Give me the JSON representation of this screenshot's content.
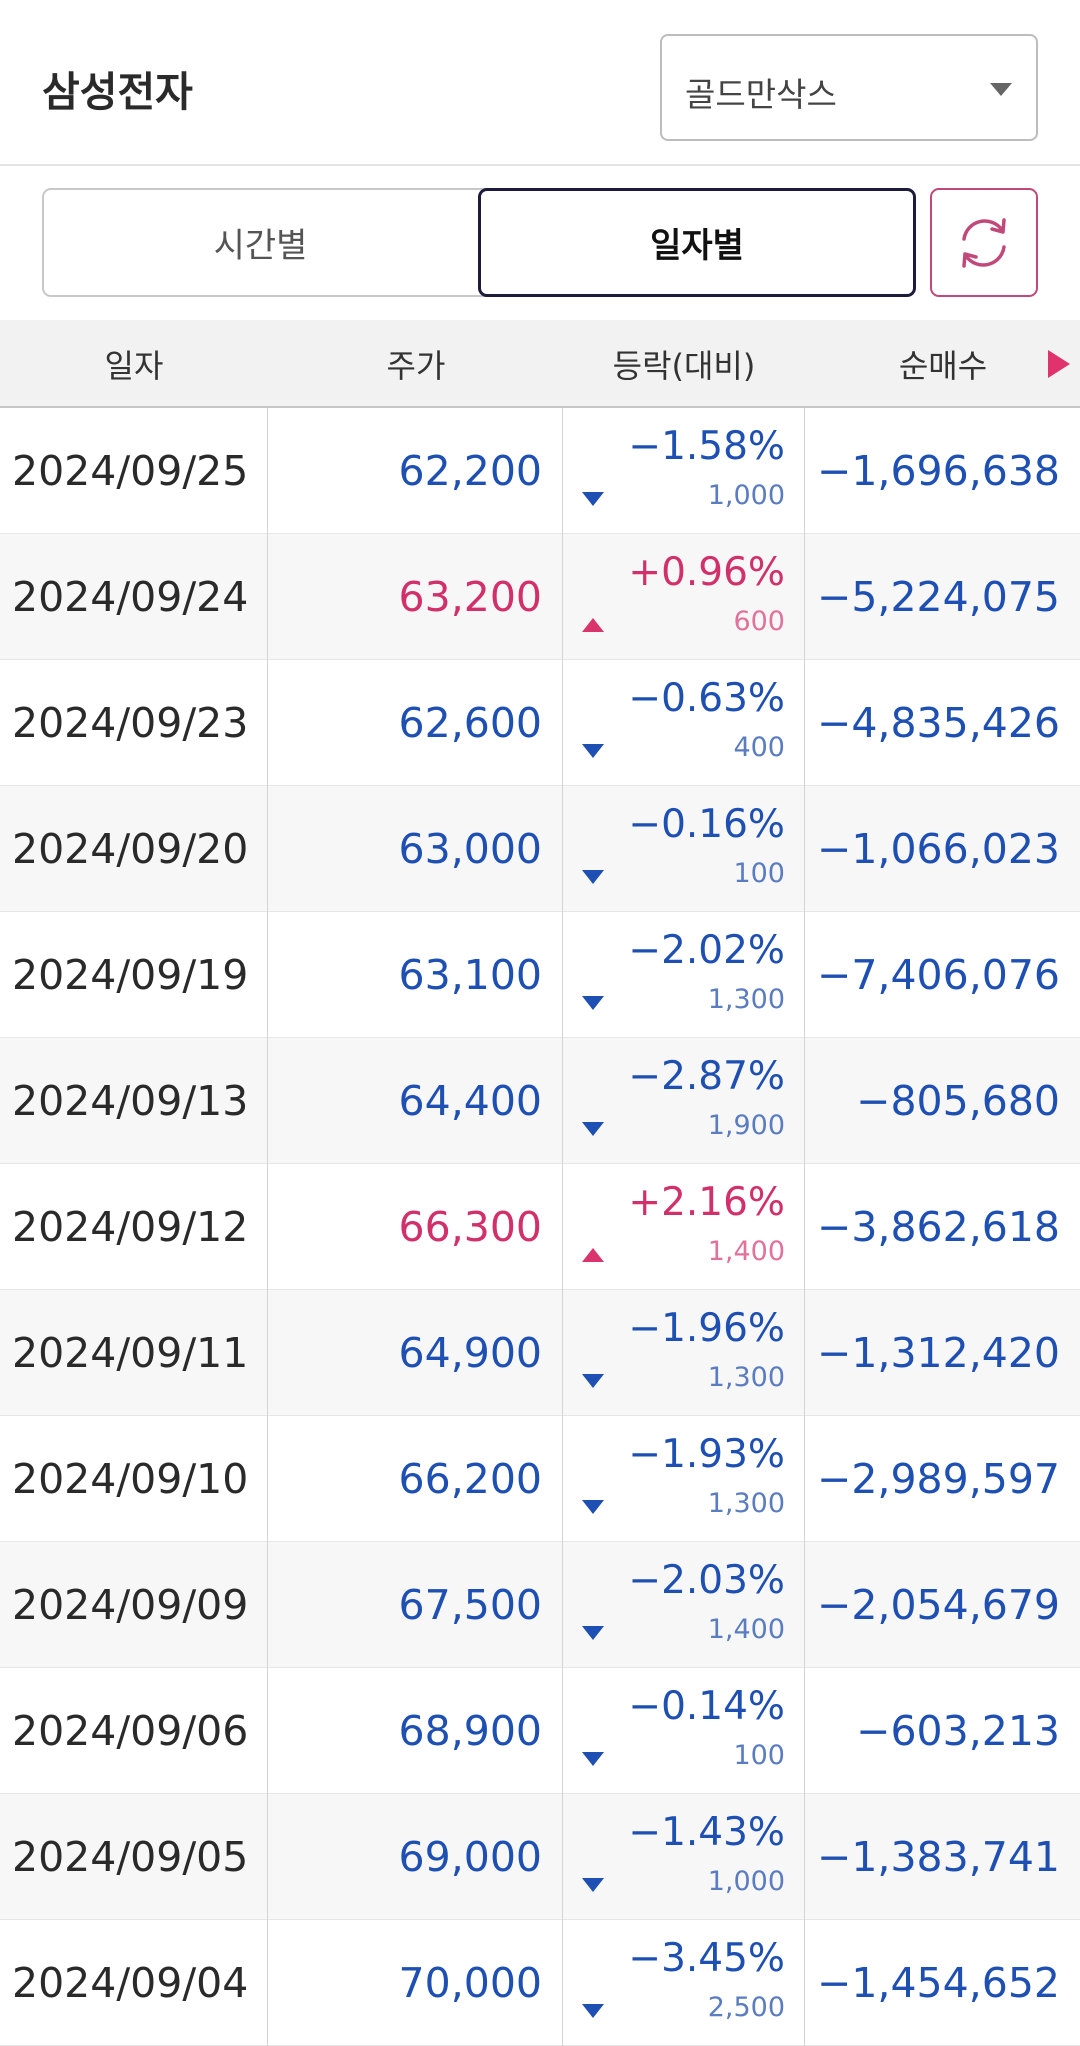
{
  "header": {
    "stock_name": "삼성전자",
    "broker": {
      "selected": "골드만삭스"
    }
  },
  "toggle": {
    "time_label": "시간별",
    "date_label": "일자별",
    "active": "date"
  },
  "table": {
    "headers": {
      "date": "일자",
      "price": "주가",
      "change": "등락(대비)",
      "net": "순매수"
    },
    "rows": [
      {
        "date": "2024/09/25",
        "price": "62,200",
        "pct": "−1.58%",
        "diff": "1,000",
        "dir": "down",
        "net": "−1,696,638"
      },
      {
        "date": "2024/09/24",
        "price": "63,200",
        "pct": "+0.96%",
        "diff": "600",
        "dir": "up",
        "net": "−5,224,075"
      },
      {
        "date": "2024/09/23",
        "price": "62,600",
        "pct": "−0.63%",
        "diff": "400",
        "dir": "down",
        "net": "−4,835,426"
      },
      {
        "date": "2024/09/20",
        "price": "63,000",
        "pct": "−0.16%",
        "diff": "100",
        "dir": "down",
        "net": "−1,066,023"
      },
      {
        "date": "2024/09/19",
        "price": "63,100",
        "pct": "−2.02%",
        "diff": "1,300",
        "dir": "down",
        "net": "−7,406,076"
      },
      {
        "date": "2024/09/13",
        "price": "64,400",
        "pct": "−2.87%",
        "diff": "1,900",
        "dir": "down",
        "net": "−805,680"
      },
      {
        "date": "2024/09/12",
        "price": "66,300",
        "pct": "+2.16%",
        "diff": "1,400",
        "dir": "up",
        "net": "−3,862,618"
      },
      {
        "date": "2024/09/11",
        "price": "64,900",
        "pct": "−1.96%",
        "diff": "1,300",
        "dir": "down",
        "net": "−1,312,420"
      },
      {
        "date": "2024/09/10",
        "price": "66,200",
        "pct": "−1.93%",
        "diff": "1,300",
        "dir": "down",
        "net": "−2,989,597"
      },
      {
        "date": "2024/09/09",
        "price": "67,500",
        "pct": "−2.03%",
        "diff": "1,400",
        "dir": "down",
        "net": "−2,054,679"
      },
      {
        "date": "2024/09/06",
        "price": "68,900",
        "pct": "−0.14%",
        "diff": "100",
        "dir": "down",
        "net": "−603,213"
      },
      {
        "date": "2024/09/05",
        "price": "69,000",
        "pct": "−1.43%",
        "diff": "1,000",
        "dir": "down",
        "net": "−1,383,741"
      },
      {
        "date": "2024/09/04",
        "price": "70,000",
        "pct": "−3.45%",
        "diff": "2,500",
        "dir": "down",
        "net": "−1,454,652"
      }
    ]
  },
  "colors": {
    "down": "#1e4fb3",
    "up": "#d1306a",
    "accent": "#c0497a"
  },
  "icons": {
    "refresh": "refresh-icon",
    "dropdown": "chevron-down-icon",
    "more": "chevron-right-icon"
  }
}
